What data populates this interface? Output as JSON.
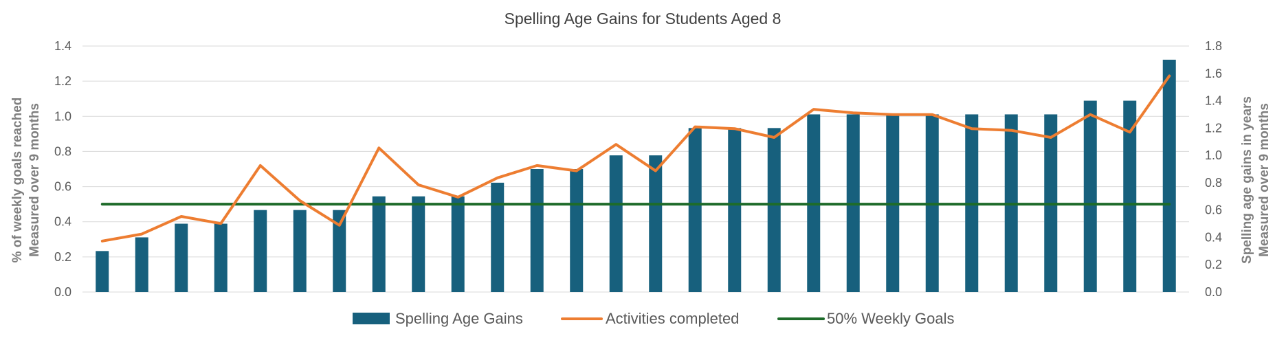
{
  "chart_data": {
    "type": "bar+line",
    "title": "Spelling Age Gains for Students Aged 8",
    "y_left": {
      "label_line1": "% of weekly goals reached",
      "label_line2": "Measured over 9 months",
      "lim": [
        0,
        1.4
      ],
      "ticks": [
        "0.0",
        "0.2",
        "0.4",
        "0.6",
        "0.8",
        "1.0",
        "1.2",
        "1.4"
      ]
    },
    "y_right": {
      "label_line1": "Spelling age gains in years",
      "label_line2": "Measured over 9 months",
      "lim": [
        0,
        1.8
      ],
      "ticks": [
        "0.0",
        "0.2",
        "0.4",
        "0.6",
        "0.8",
        "1.0",
        "1.2",
        "1.4",
        "1.6",
        "1.8"
      ]
    },
    "grid": true,
    "legend_position": "bottom",
    "series": [
      {
        "name": "Spelling Age Gains",
        "type": "bar",
        "axis": "right",
        "color": "#17607d",
        "values": [
          0.3,
          0.4,
          0.5,
          0.5,
          0.6,
          0.6,
          0.6,
          0.7,
          0.7,
          0.7,
          0.8,
          0.9,
          0.9,
          1.0,
          1.0,
          1.2,
          1.2,
          1.2,
          1.3,
          1.3,
          1.3,
          1.3,
          1.3,
          1.3,
          1.3,
          1.4,
          1.4,
          1.7
        ]
      },
      {
        "name": "Activities completed",
        "type": "line",
        "axis": "left",
        "color": "#ed7d31",
        "values": [
          0.29,
          0.33,
          0.43,
          0.39,
          0.72,
          0.52,
          0.38,
          0.82,
          0.61,
          0.54,
          0.65,
          0.72,
          0.69,
          0.84,
          0.69,
          0.94,
          0.93,
          0.88,
          1.04,
          1.02,
          1.01,
          1.01,
          0.93,
          0.92,
          0.88,
          1.01,
          0.91,
          1.23
        ]
      },
      {
        "name": "50% Weekly Goals",
        "type": "line",
        "axis": "left",
        "color": "#1e6b2a",
        "values": [
          0.5,
          0.5,
          0.5,
          0.5,
          0.5,
          0.5,
          0.5,
          0.5,
          0.5,
          0.5,
          0.5,
          0.5,
          0.5,
          0.5,
          0.5,
          0.5,
          0.5,
          0.5,
          0.5,
          0.5,
          0.5,
          0.5,
          0.5,
          0.5,
          0.5,
          0.5,
          0.5,
          0.5
        ]
      }
    ]
  }
}
